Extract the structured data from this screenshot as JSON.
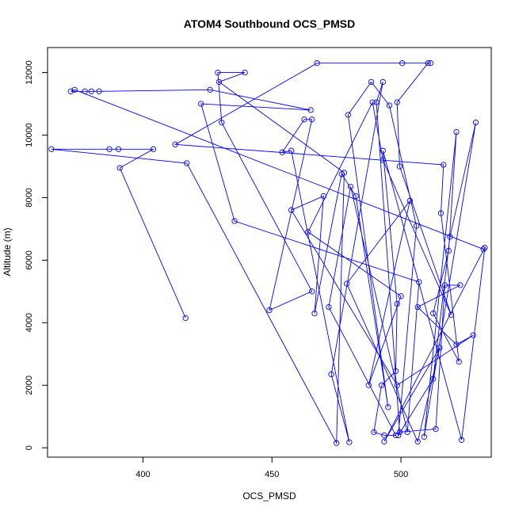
{
  "chart_data": {
    "type": "line",
    "title": "ATOM4 Southbound OCS_PMSD",
    "xlabel": "OCS_PMSD",
    "ylabel": "Altitude (m)",
    "xlim": [
      363,
      535
    ],
    "ylim": [
      -300,
      12800
    ],
    "x_ticks": [
      400,
      450,
      500
    ],
    "y_ticks": [
      0,
      2000,
      4000,
      6000,
      8000,
      10000,
      12000
    ],
    "grid": false,
    "legend": "none",
    "series": [
      {
        "color": "#0000ff",
        "marker": "open-circle",
        "points": [
          [
            416.5,
            4150
          ],
          [
            391,
            8950
          ],
          [
            404,
            9550
          ],
          [
            390.5,
            9550
          ],
          [
            387,
            9550
          ],
          [
            364.5,
            9550
          ],
          [
            417,
            9100
          ],
          [
            475,
            150
          ],
          [
            478,
            8800
          ],
          [
            429.5,
            11700
          ],
          [
            439.5,
            12000
          ],
          [
            429,
            12000
          ],
          [
            430.5,
            10400
          ],
          [
            465.5,
            5000
          ],
          [
            449,
            4400
          ],
          [
            465.5,
            10500
          ],
          [
            462.5,
            10500
          ],
          [
            454,
            9450
          ],
          [
            457.5,
            9500
          ],
          [
            480,
            180
          ],
          [
            473,
            2350
          ],
          [
            493,
            11700
          ],
          [
            490.5,
            11050
          ],
          [
            499.5,
            500
          ],
          [
            513.5,
            600
          ],
          [
            517,
            5200
          ],
          [
            523,
            5200
          ],
          [
            506.5,
            4500
          ],
          [
            521.5,
            3300
          ],
          [
            528,
            3600
          ],
          [
            498.5,
            2000
          ],
          [
            457.5,
            7600
          ],
          [
            470,
            8050
          ],
          [
            466.5,
            4300
          ],
          [
            477,
            8750
          ],
          [
            482.5,
            8050
          ],
          [
            495,
            1300
          ],
          [
            479.5,
            10650
          ],
          [
            488.5,
            11700
          ],
          [
            495.5,
            10950
          ],
          [
            506,
            7100
          ],
          [
            499,
            400
          ],
          [
            512.5,
            2200
          ],
          [
            519,
            6750
          ],
          [
            529,
            10400
          ],
          [
            509,
            350
          ],
          [
            521.5,
            10100
          ],
          [
            518.5,
            6300
          ],
          [
            512.5,
            4300
          ],
          [
            522.5,
            2750
          ],
          [
            515.5,
            7500
          ],
          [
            516.5,
            9050
          ],
          [
            412.5,
            9700
          ],
          [
            467.5,
            12300
          ],
          [
            500.5,
            12300
          ],
          [
            511.5,
            12300
          ],
          [
            510.5,
            12300
          ],
          [
            498.5,
            11050
          ],
          [
            499.5,
            9000
          ],
          [
            519.5,
            4250
          ],
          [
            493,
            9200
          ],
          [
            489,
            11050
          ],
          [
            464,
            6900
          ],
          [
            500,
            4850
          ],
          [
            487.5,
            2000
          ],
          [
            503.5,
            7900
          ],
          [
            479,
            5250
          ],
          [
            506.5,
            200
          ],
          [
            515,
            3200
          ],
          [
            493.5,
            200
          ],
          [
            532.5,
            6400
          ],
          [
            523.5,
            250
          ],
          [
            493,
            9500
          ],
          [
            498.5,
            4600
          ],
          [
            498,
            2450
          ],
          [
            492.5,
            2000
          ],
          [
            489.5,
            500
          ],
          [
            493.5,
            400
          ],
          [
            498,
            400
          ],
          [
            472,
            4500
          ],
          [
            480.5,
            8350
          ],
          [
            502.5,
            500
          ],
          [
            507,
            5300
          ],
          [
            435.5,
            7250
          ],
          [
            422.5,
            11000
          ],
          [
            465,
            10800
          ],
          [
            426,
            11450
          ],
          [
            383,
            11400
          ],
          [
            380,
            11400
          ],
          [
            377.5,
            11400
          ],
          [
            372,
            11400
          ],
          [
            373.5,
            11450
          ],
          [
            532,
            6350
          ]
        ]
      }
    ]
  }
}
